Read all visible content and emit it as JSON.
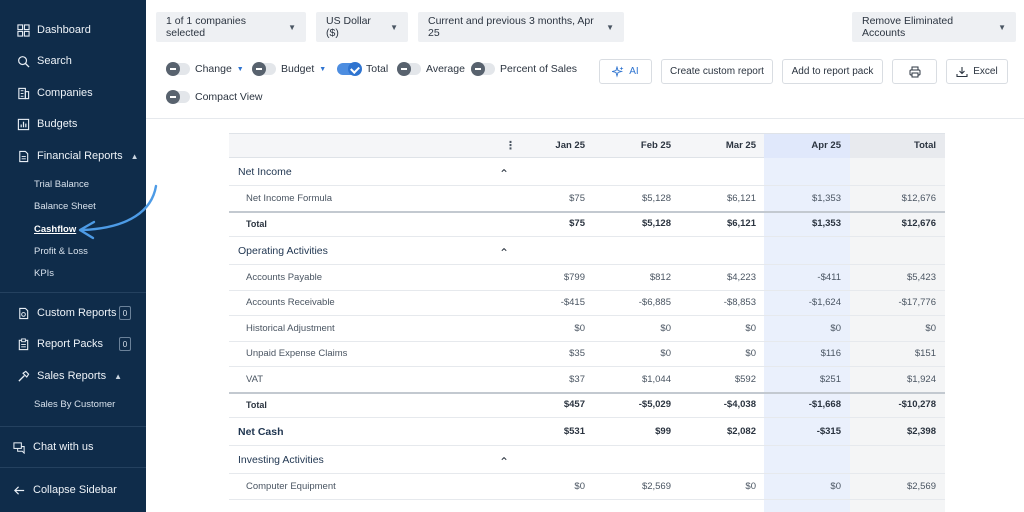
{
  "sidebar": {
    "items": [
      {
        "label": "Dashboard",
        "icon": "dashboard-icon"
      },
      {
        "label": "Search",
        "icon": "search-icon"
      },
      {
        "label": "Companies",
        "icon": "building-icon"
      },
      {
        "label": "Budgets",
        "icon": "chart-icon"
      },
      {
        "label": "Financial Reports",
        "icon": "report-icon"
      },
      {
        "label": "Custom Reports",
        "icon": "custom-report-icon",
        "count": "0"
      },
      {
        "label": "Report Packs",
        "icon": "clipboard-icon",
        "count": "0"
      },
      {
        "label": "Sales Reports",
        "icon": "hammer-icon"
      }
    ],
    "financial_sub": [
      "Trial Balance",
      "Balance Sheet",
      "Cashflow",
      "Profit & Loss",
      "KPIs"
    ],
    "sales_sub": [
      "Sales By Customer"
    ],
    "chat_label": "Chat with us",
    "collapse_label": "Collapse Sidebar"
  },
  "toolbar": {
    "companies": "1 of 1 companies selected",
    "currency": "US Dollar ($)",
    "period": "Current and previous 3 months, Apr 25",
    "eliminated": "Remove Eliminated Accounts",
    "toggles": [
      {
        "label": "Change",
        "on": false
      },
      {
        "label": "Budget",
        "on": false
      },
      {
        "label": "Total",
        "on": true
      },
      {
        "label": "Average",
        "on": false
      },
      {
        "label": "Percent of Sales",
        "on": false
      },
      {
        "label": "Compact View",
        "on": false
      }
    ],
    "ai_label": "AI",
    "create_custom_report": "Create custom report",
    "add_to_report_pack": "Add to report pack",
    "excel_label": "Excel"
  },
  "table": {
    "columns": [
      "Jan 25",
      "Feb 25",
      "Mar 25",
      "Apr 25",
      "Total"
    ],
    "rows": [
      {
        "type": "section",
        "label": "Net Income"
      },
      {
        "type": "item",
        "label": "Net Income Formula",
        "values": [
          "$75",
          "$5,128",
          "$6,121",
          "$1,353",
          "$12,676"
        ]
      },
      {
        "type": "total",
        "label": "Total",
        "values": [
          "$75",
          "$5,128",
          "$6,121",
          "$1,353",
          "$12,676"
        ]
      },
      {
        "type": "section",
        "label": "Operating Activities"
      },
      {
        "type": "item",
        "label": "Accounts Payable",
        "values": [
          "$799",
          "$812",
          "$4,223",
          "-$411",
          "$5,423"
        ]
      },
      {
        "type": "item",
        "label": "Accounts Receivable",
        "values": [
          "-$415",
          "-$6,885",
          "-$8,853",
          "-$1,624",
          "-$17,776"
        ]
      },
      {
        "type": "item",
        "label": "Historical Adjustment",
        "values": [
          "$0",
          "$0",
          "$0",
          "$0",
          "$0"
        ]
      },
      {
        "type": "item",
        "label": "Unpaid Expense Claims",
        "values": [
          "$35",
          "$0",
          "$0",
          "$116",
          "$151"
        ]
      },
      {
        "type": "item",
        "label": "VAT",
        "values": [
          "$37",
          "$1,044",
          "$592",
          "$251",
          "$1,924"
        ]
      },
      {
        "type": "total",
        "label": "Total",
        "values": [
          "$457",
          "-$5,029",
          "-$4,038",
          "-$1,668",
          "-$10,278"
        ]
      },
      {
        "type": "netcash",
        "label": "Net Cash",
        "values": [
          "$531",
          "$99",
          "$2,082",
          "-$315",
          "$2,398"
        ]
      },
      {
        "type": "section",
        "label": "Investing Activities"
      },
      {
        "type": "item",
        "label": "Computer Equipment",
        "values": [
          "$0",
          "$2,569",
          "$0",
          "$0",
          "$2,569"
        ]
      }
    ]
  }
}
